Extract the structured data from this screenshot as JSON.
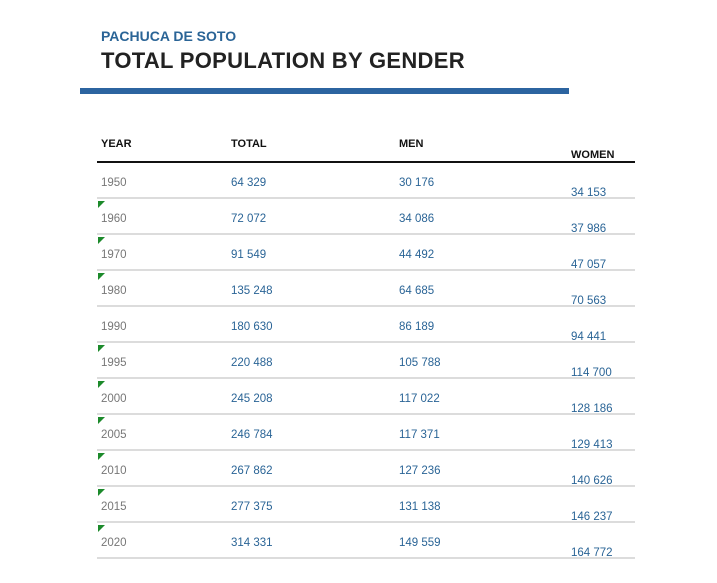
{
  "header": {
    "subtitle": "PACHUCA DE SOTO",
    "title": "TOTAL POPULATION BY GENDER"
  },
  "colors": {
    "accent": "#2c64a0",
    "text_blue": "#2a6496",
    "flag_green": "#1c8a2b"
  },
  "table": {
    "columns": [
      "YEAR",
      "TOTAL",
      "MEN",
      "WOMEN"
    ],
    "rows": [
      {
        "year": "1950",
        "total": "64 329",
        "men": "30 176",
        "women": "34 153",
        "flag": false
      },
      {
        "year": "1960",
        "total": "72 072",
        "men": "34 086",
        "women": "37 986",
        "flag": true
      },
      {
        "year": "1970",
        "total": "91 549",
        "men": "44 492",
        "women": "47 057",
        "flag": true
      },
      {
        "year": "1980",
        "total": "135 248",
        "men": "64 685",
        "women": "70 563",
        "flag": true
      },
      {
        "year": "1990",
        "total": "180 630",
        "men": "86 189",
        "women": "94 441",
        "flag": false
      },
      {
        "year": "1995",
        "total": "220 488",
        "men": "105 788",
        "women": "114 700",
        "flag": true
      },
      {
        "year": "2000",
        "total": "245 208",
        "men": "117 022",
        "women": "128 186",
        "flag": true
      },
      {
        "year": "2005",
        "total": "246 784",
        "men": "117 371",
        "women": "129 413",
        "flag": true
      },
      {
        "year": "2010",
        "total": "267 862",
        "men": "127 236",
        "women": "140 626",
        "flag": true
      },
      {
        "year": "2015",
        "total": "277 375",
        "men": "131 138",
        "women": "146 237",
        "flag": true
      },
      {
        "year": "2020",
        "total": "314 331",
        "men": "149 559",
        "women": "164 772",
        "flag": true
      }
    ]
  }
}
